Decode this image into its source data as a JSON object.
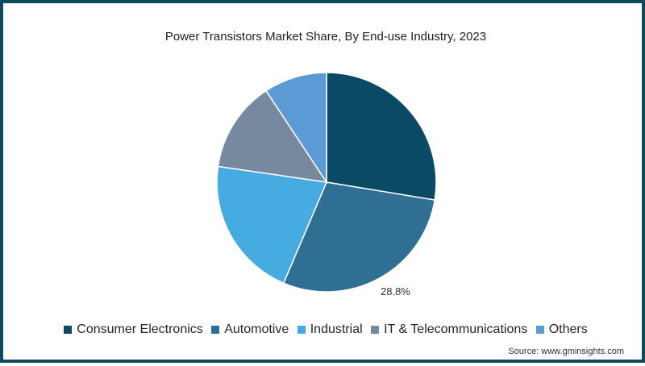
{
  "chart_data": {
    "type": "pie",
    "title": "Power Transistors Market Share, By End-use Industry, 2023",
    "categories": [
      "Consumer Electronics",
      "Automotive",
      "Industrial",
      "IT & Telecommunications",
      "Others"
    ],
    "values": [
      27.6,
      28.8,
      20.9,
      13.4,
      9.3
    ],
    "colors": [
      "#0b4a64",
      "#2f6f93",
      "#45abe0",
      "#76899e",
      "#5b9bd5"
    ],
    "data_labels": [
      {
        "category": "Automotive",
        "text": "28.8%"
      }
    ],
    "start_angle_deg": 0,
    "direction": "clockwise",
    "legend_position": "bottom",
    "source": "Source: www.gminsights.com"
  },
  "labels": {
    "title": "Power Transistors Market Share, By End-use Industry, 2023",
    "automotive_value": "28.8%",
    "source": "Source: www.gminsights.com",
    "legend": [
      "Consumer Electronics",
      "Automotive",
      "Industrial",
      "IT & Telecommunications",
      "Others"
    ]
  }
}
